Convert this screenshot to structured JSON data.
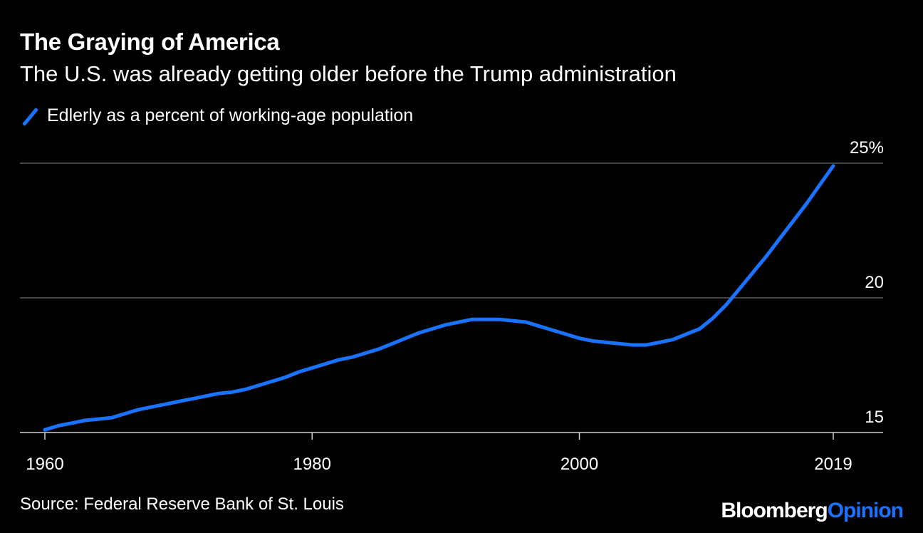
{
  "title": "The Graying of America",
  "subtitle": "The U.S. was already getting older before the Trump administration",
  "legend": {
    "label": "Edlerly as a percent of working-age population",
    "color": "#1a73ff"
  },
  "source": "Source: Federal Reserve Bank of St. Louis",
  "brand": {
    "part1": "Bloomberg",
    "part2": "Opinion"
  },
  "chart_data": {
    "type": "line",
    "title": "The Graying of America",
    "subtitle": "The U.S. was already getting older before the Trump administration",
    "xlim": [
      1960,
      2019
    ],
    "ylim": [
      15,
      25
    ],
    "y_ticks": [
      15,
      20,
      25
    ],
    "y_tick_labels": [
      "15",
      "20",
      "25%"
    ],
    "x_ticks": [
      1960,
      1980,
      2000,
      2019
    ],
    "x_tick_labels": [
      "1960",
      "1980",
      "2000",
      "2019"
    ],
    "grid": "horizontal",
    "series": [
      {
        "name": "Edlerly as a percent of working-age population",
        "color": "#1a73ff",
        "x": [
          1960,
          1961,
          1962,
          1963,
          1964,
          1965,
          1966,
          1967,
          1968,
          1969,
          1970,
          1971,
          1972,
          1973,
          1974,
          1975,
          1976,
          1977,
          1978,
          1979,
          1980,
          1981,
          1982,
          1983,
          1984,
          1985,
          1986,
          1987,
          1988,
          1989,
          1990,
          1991,
          1992,
          1993,
          1994,
          1995,
          1996,
          1997,
          1998,
          1999,
          2000,
          2001,
          2002,
          2003,
          2004,
          2005,
          2006,
          2007,
          2008,
          2009,
          2010,
          2011,
          2012,
          2013,
          2014,
          2015,
          2016,
          2017,
          2018,
          2019
        ],
        "values": [
          15.1,
          15.25,
          15.35,
          15.45,
          15.5,
          15.55,
          15.7,
          15.85,
          15.95,
          16.05,
          16.15,
          16.25,
          16.35,
          16.45,
          16.5,
          16.6,
          16.75,
          16.9,
          17.05,
          17.25,
          17.4,
          17.55,
          17.7,
          17.8,
          17.95,
          18.1,
          18.3,
          18.5,
          18.7,
          18.85,
          19.0,
          19.1,
          19.2,
          19.2,
          19.2,
          19.15,
          19.1,
          18.95,
          18.8,
          18.65,
          18.5,
          18.4,
          18.35,
          18.3,
          18.25,
          18.25,
          18.35,
          18.45,
          18.65,
          18.85,
          19.25,
          19.75,
          20.35,
          20.95,
          21.55,
          22.2,
          22.85,
          23.5,
          24.2,
          24.9
        ]
      }
    ]
  }
}
